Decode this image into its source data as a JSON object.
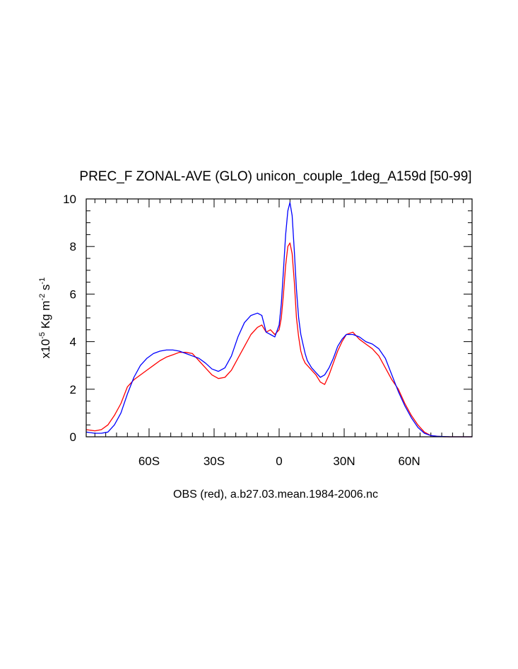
{
  "chart_data": {
    "type": "line",
    "title": "PREC_F ZONAL-AVE (GLO) unicon_couple_1deg_A159d [50-99]",
    "xlabel": "OBS (red), a.b27.03.mean.1984-2006.nc",
    "ylabel": {
      "base": "x10",
      "exp1": "-5",
      "mid": " Kg m",
      "exp2": "-2",
      "mid2": " s",
      "exp3": "-1"
    },
    "xlim": [
      -89,
      89
    ],
    "ylim": [
      0,
      10
    ],
    "x_ticks": [
      {
        "value": -60,
        "label": "60S"
      },
      {
        "value": -30,
        "label": "30S"
      },
      {
        "value": 0,
        "label": "0"
      },
      {
        "value": 30,
        "label": "30N"
      },
      {
        "value": 60,
        "label": "60N"
      }
    ],
    "y_ticks": [
      {
        "value": 0,
        "label": "0"
      },
      {
        "value": 2,
        "label": "2"
      },
      {
        "value": 4,
        "label": "4"
      },
      {
        "value": 6,
        "label": "6"
      },
      {
        "value": 8,
        "label": "8"
      },
      {
        "value": 10,
        "label": "10"
      }
    ],
    "series": [
      {
        "color": "#ff0000",
        "x": [
          -89,
          -85,
          -82,
          -79,
          -76,
          -73,
          -70,
          -67,
          -64,
          -61,
          -58,
          -55,
          -52,
          -49,
          -46,
          -43,
          -40,
          -37,
          -34,
          -31,
          -28,
          -25,
          -22,
          -19,
          -16,
          -13,
          -10,
          -8,
          -6,
          -4,
          -2,
          0,
          1,
          2,
          3,
          4,
          5,
          6,
          7,
          8,
          9,
          10,
          11,
          12,
          13,
          15,
          17,
          19,
          21,
          23,
          25,
          27,
          29,
          31,
          34,
          37,
          40,
          43,
          46,
          49,
          52,
          55,
          58,
          61,
          64,
          67,
          70,
          73,
          76,
          79,
          82,
          85,
          89
        ],
        "y": [
          0.3,
          0.25,
          0.3,
          0.5,
          0.9,
          1.4,
          2.1,
          2.4,
          2.6,
          2.8,
          3.0,
          3.2,
          3.35,
          3.45,
          3.55,
          3.55,
          3.5,
          3.2,
          2.9,
          2.6,
          2.45,
          2.5,
          2.8,
          3.3,
          3.8,
          4.3,
          4.6,
          4.7,
          4.4,
          4.5,
          4.3,
          4.5,
          5.0,
          6.0,
          7.2,
          8.0,
          8.15,
          7.7,
          6.5,
          5.0,
          4.2,
          3.6,
          3.3,
          3.1,
          3.0,
          2.8,
          2.6,
          2.3,
          2.2,
          2.6,
          3.1,
          3.6,
          4.0,
          4.3,
          4.4,
          4.1,
          3.9,
          3.7,
          3.4,
          2.9,
          2.4,
          2.0,
          1.4,
          0.9,
          0.5,
          0.2,
          0.05,
          0.02,
          0.0,
          0.0,
          0.0,
          0.0,
          0.0
        ]
      },
      {
        "color": "#0000ff",
        "x": [
          -89,
          -85,
          -82,
          -79,
          -76,
          -73,
          -70,
          -67,
          -64,
          -61,
          -58,
          -55,
          -52,
          -49,
          -46,
          -43,
          -40,
          -37,
          -34,
          -31,
          -28,
          -25,
          -22,
          -19,
          -16,
          -13,
          -10,
          -8,
          -6,
          -4,
          -2,
          0,
          1,
          2,
          3,
          4,
          5,
          6,
          7,
          8,
          9,
          10,
          11,
          12,
          13,
          15,
          17,
          19,
          21,
          23,
          25,
          27,
          29,
          31,
          34,
          37,
          40,
          43,
          46,
          49,
          52,
          55,
          58,
          61,
          64,
          67,
          70,
          73,
          76,
          79,
          82,
          85,
          89
        ],
        "y": [
          0.2,
          0.15,
          0.15,
          0.2,
          0.5,
          1.0,
          1.8,
          2.5,
          3.0,
          3.3,
          3.5,
          3.6,
          3.65,
          3.65,
          3.6,
          3.5,
          3.4,
          3.3,
          3.1,
          2.85,
          2.75,
          2.9,
          3.4,
          4.2,
          4.8,
          5.1,
          5.2,
          5.1,
          4.4,
          4.3,
          4.2,
          4.7,
          5.6,
          7.0,
          8.5,
          9.5,
          9.85,
          9.3,
          7.8,
          6.2,
          5.0,
          4.3,
          3.9,
          3.5,
          3.2,
          2.9,
          2.7,
          2.5,
          2.6,
          2.9,
          3.3,
          3.8,
          4.1,
          4.3,
          4.3,
          4.2,
          4.0,
          3.9,
          3.7,
          3.3,
          2.6,
          1.9,
          1.3,
          0.8,
          0.4,
          0.15,
          0.05,
          0.02,
          0.01,
          0.0,
          0.0,
          0.0,
          0.0
        ]
      }
    ]
  }
}
